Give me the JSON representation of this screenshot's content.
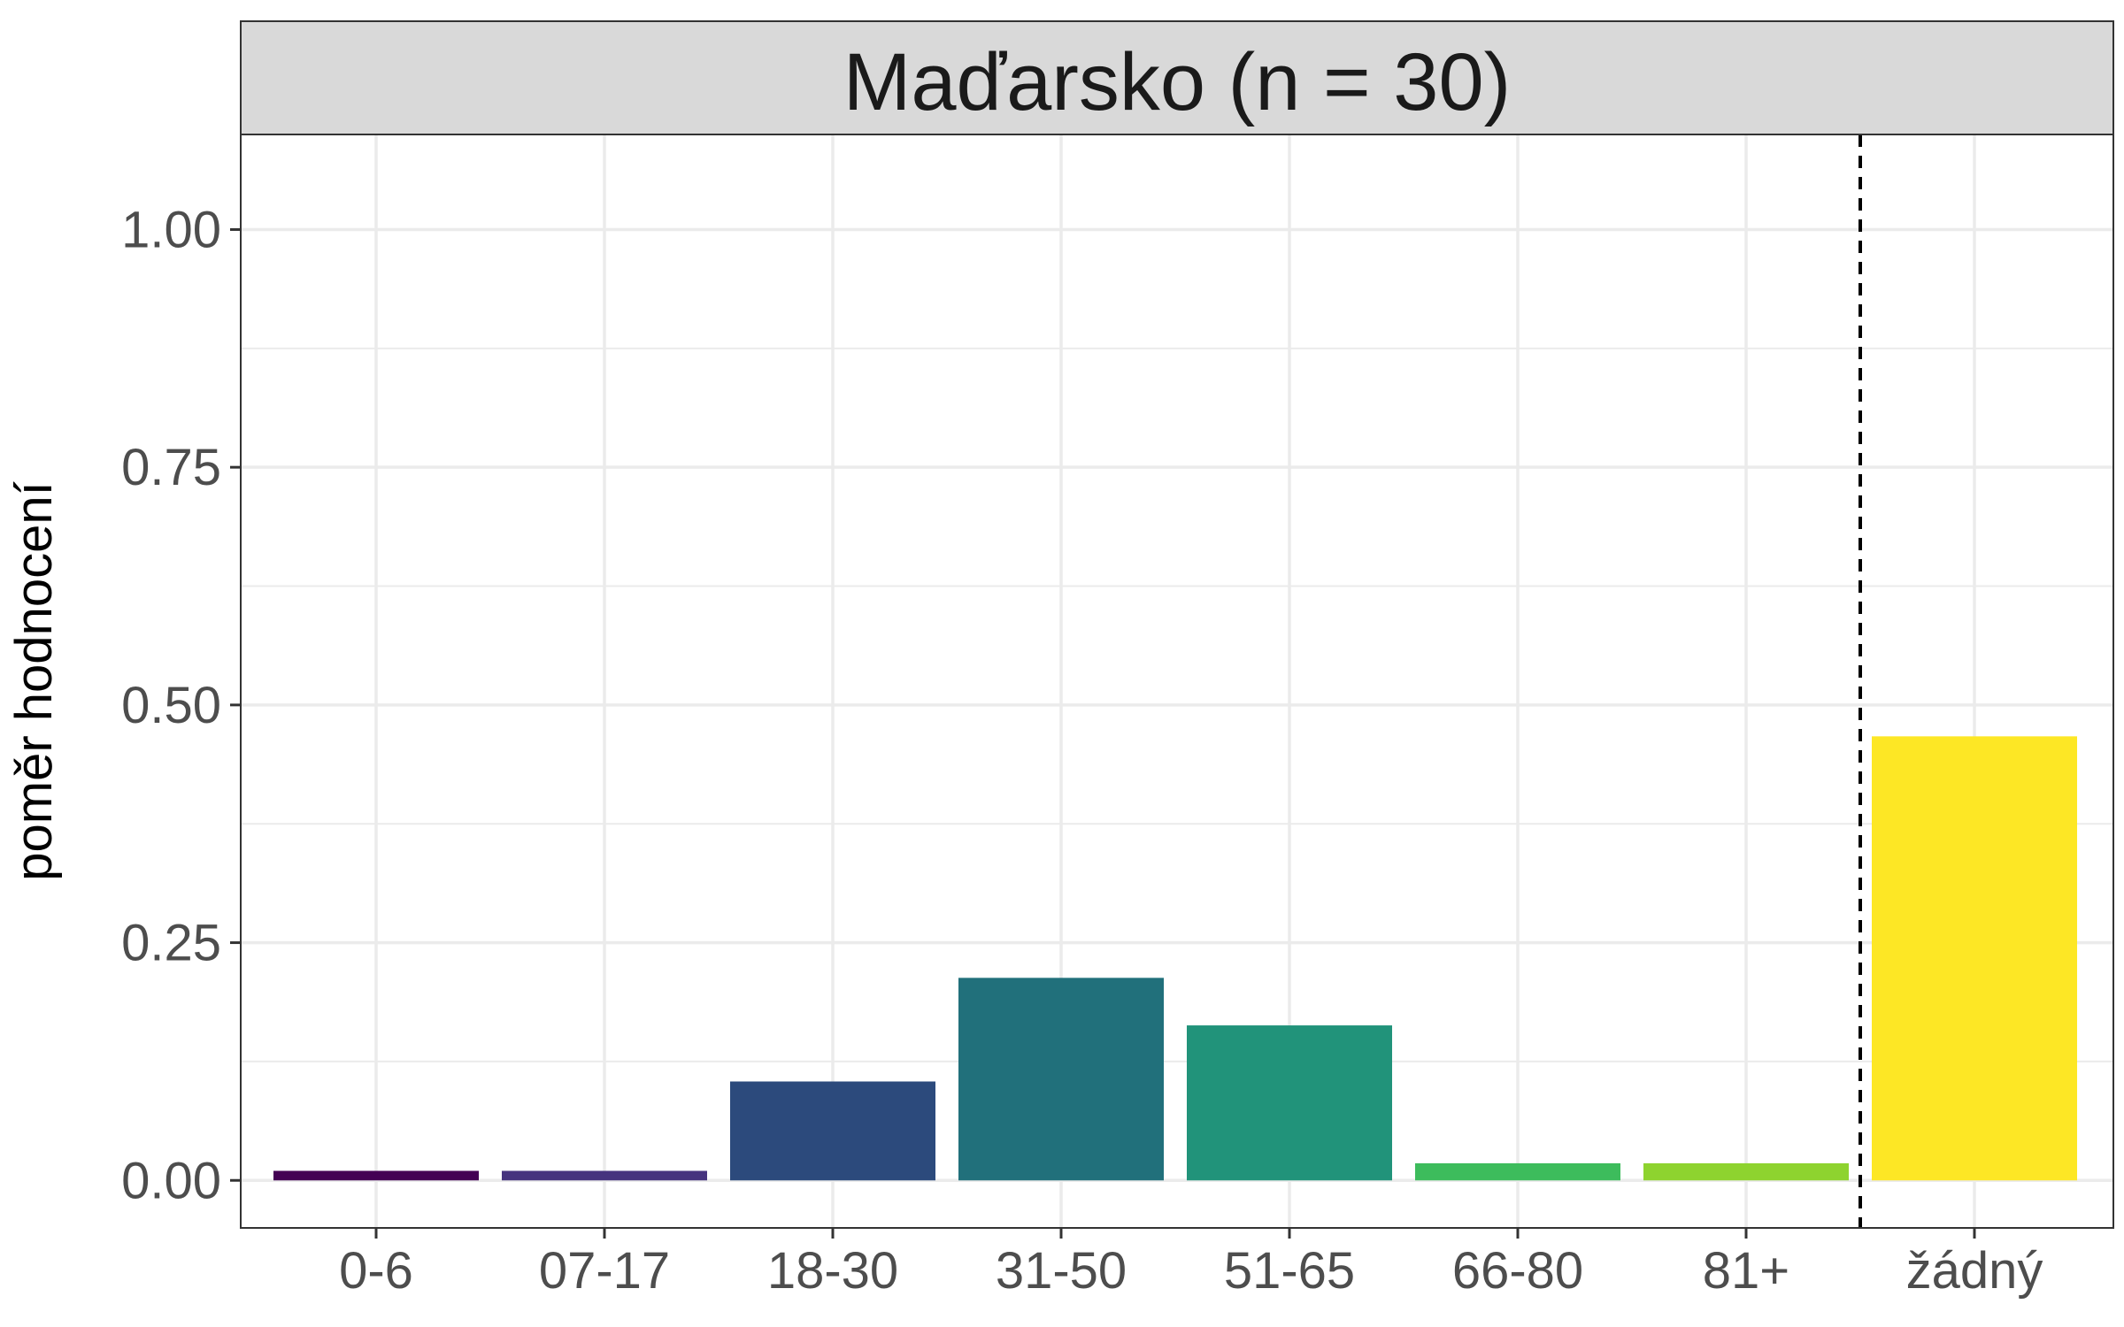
{
  "chart_data": {
    "type": "bar",
    "facet_title": "Maďarsko (n = 30)",
    "ylabel": "poměr hodnocení",
    "xlabel": "",
    "categories": [
      "0-6",
      "07-17",
      "18-30",
      "31-50",
      "51-65",
      "66-80",
      "81+",
      "žádný"
    ],
    "values": [
      0.01,
      0.01,
      0.104,
      0.213,
      0.163,
      0.018,
      0.018,
      0.467
    ],
    "colors": [
      "#440154",
      "#46337E",
      "#2C4A7C",
      "#21707B",
      "#21937A",
      "#3DBC5C",
      "#8ED32F",
      "#FDE725"
    ],
    "ylim": [
      -0.05,
      1.1
    ],
    "yticks": [
      0.0,
      0.25,
      0.5,
      0.75,
      1.0
    ],
    "ytick_labels": [
      "0.00",
      "0.25",
      "0.50",
      "0.75",
      "1.00"
    ],
    "reference_line": {
      "style": "dashed",
      "between_categories": [
        "81+",
        "žádný"
      ]
    },
    "grid": true,
    "legend": "none"
  }
}
